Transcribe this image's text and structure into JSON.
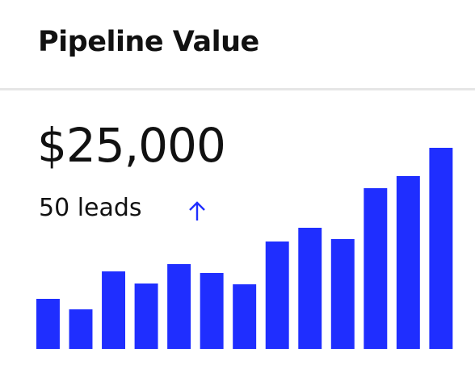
{
  "header": {
    "title": "Pipeline Value"
  },
  "metric": {
    "value": "$25,000",
    "subtitle": "50 leads"
  },
  "chart_data": {
    "type": "bar",
    "color": "#1f2eff",
    "values": [
      62,
      49,
      96,
      81,
      105,
      94,
      80,
      133,
      150,
      136,
      199,
      214,
      249
    ]
  }
}
